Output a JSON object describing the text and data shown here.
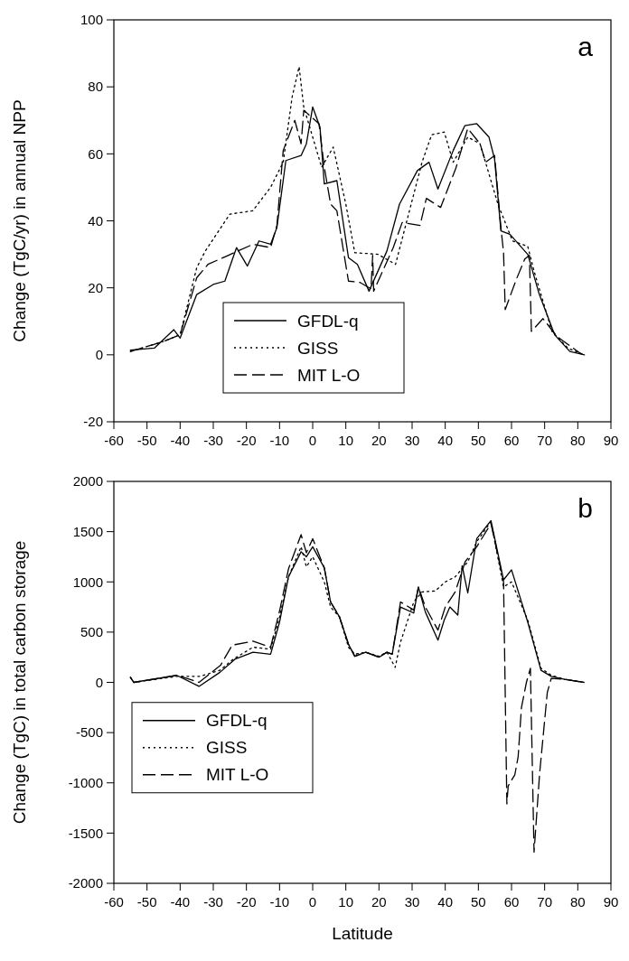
{
  "chart_data": [
    {
      "type": "line",
      "ylabel": "Change (TgC/yr) in annual NPP",
      "annotations": [
        "a"
      ],
      "xlim": [
        -60,
        90
      ],
      "xticks": [
        -60,
        -50,
        -40,
        -30,
        -20,
        -10,
        0,
        10,
        20,
        30,
        40,
        50,
        60,
        70,
        80,
        90
      ],
      "ylim": [
        -20,
        100
      ],
      "yticks": [
        -20,
        0,
        20,
        40,
        60,
        80,
        100
      ],
      "legend": "bottom",
      "grid": false,
      "series": [
        {
          "name": "GFDL-q",
          "color": "#000000",
          "line_style": "solid",
          "x": [
            -55,
            -47.8,
            -41.9,
            -40,
            -35,
            -30,
            -26.5,
            -23,
            -19.7,
            -16.2,
            -12.7,
            -10.8,
            -8.1,
            -3.5,
            -1.9,
            0,
            2.2,
            3.5,
            7.3,
            10.8,
            13.5,
            17,
            22.4,
            26.2,
            31.6,
            35.1,
            37.8,
            42.4,
            45.9,
            49.5,
            53.2,
            54.9,
            56.8,
            59.5,
            64.9,
            68.4,
            73,
            77.6,
            82
          ],
          "values": [
            1.4,
            2,
            7.5,
            5,
            18,
            21,
            22,
            32,
            26.5,
            34,
            33,
            38,
            58,
            59.5,
            63,
            74,
            68,
            51,
            52,
            29,
            27,
            19,
            31,
            45,
            55,
            57.5,
            49.5,
            61,
            68.4,
            69,
            65,
            58.4,
            37,
            36,
            30,
            18,
            6,
            1,
            0
          ]
        },
        {
          "name": "GISS",
          "color": "#000000",
          "line_style": "dotted",
          "x": [
            -55,
            -45,
            -40,
            -35,
            -32.4,
            -25,
            -18.1,
            -12.7,
            -8.9,
            -6.2,
            -4.1,
            -2.7,
            2.7,
            6.2,
            10,
            12.7,
            19.7,
            25,
            33,
            35.9,
            39.7,
            42.4,
            46.8,
            50.5,
            53.2,
            55.9,
            60.3,
            64.9,
            66.8,
            72.2,
            77,
            82
          ],
          "values": [
            1,
            4,
            6,
            26,
            31,
            42,
            43,
            50,
            57.5,
            77,
            86,
            74,
            56,
            62,
            45,
            30.5,
            30,
            27,
            57.5,
            65.7,
            66.5,
            57.5,
            65,
            63,
            54,
            45,
            34,
            32.4,
            25,
            7,
            2,
            0
          ]
        },
        {
          "name": "MIT L-O",
          "color": "#000000",
          "line_style": "dashed",
          "x": [
            -55,
            -45,
            -40,
            -35,
            -31.6,
            -18,
            -12.7,
            -10.8,
            -8.9,
            -5.4,
            -3.5,
            -2.7,
            1.9,
            3.5,
            5.4,
            7.3,
            10.8,
            14.3,
            17.6,
            18.1,
            18.4,
            24.3,
            27,
            32.4,
            34.3,
            38.6,
            43.2,
            46.8,
            50.5,
            52.2,
            54.9,
            56.8,
            57.6,
            58.1,
            61.4,
            64,
            65.4,
            66,
            69.5,
            73.8,
            81
          ],
          "values": [
            1,
            4,
            6,
            23,
            27,
            33,
            32,
            38.6,
            61,
            70,
            63,
            73,
            69,
            56,
            45,
            43,
            22,
            21.6,
            19.7,
            29.7,
            19,
            32,
            39.5,
            38.6,
            46.7,
            44,
            55.7,
            67.6,
            63,
            57.5,
            59.5,
            38,
            30.5,
            13.5,
            22.4,
            28.6,
            29.7,
            7,
            10.8,
            5.4,
            0.3
          ]
        }
      ]
    },
    {
      "type": "line",
      "xlabel": "Latitude",
      "ylabel": "Change (TgC) in total carbon storage",
      "annotations": [
        "b"
      ],
      "xlim": [
        -60,
        90
      ],
      "xticks": [
        -60,
        -50,
        -40,
        -30,
        -20,
        -10,
        0,
        10,
        20,
        30,
        40,
        50,
        60,
        70,
        80,
        90
      ],
      "ylim": [
        -2000,
        2000
      ],
      "yticks": [
        -2000,
        -1500,
        -1000,
        -500,
        0,
        500,
        1000,
        1500,
        2000
      ],
      "legend": "bottom left",
      "grid": false,
      "series": [
        {
          "name": "GFDL-q",
          "color": "#000000",
          "line_style": "solid",
          "x": [
            -55,
            -54,
            -41,
            -34.3,
            -28,
            -23.5,
            -18,
            -12.7,
            -10,
            -7.3,
            -3.5,
            -1.9,
            0,
            3.5,
            5.4,
            8.1,
            10.8,
            12.7,
            16,
            20,
            22.4,
            24,
            26.5,
            30.5,
            31.9,
            34,
            37.8,
            39.7,
            41.4,
            43.8,
            45.1,
            46.8,
            49.5,
            53.8,
            57.6,
            60,
            64.9,
            68.9,
            72,
            76,
            81.9
          ],
          "values": [
            50,
            0,
            70,
            -40,
            100,
            230,
            300,
            280,
            600,
            1050,
            1300,
            1250,
            1350,
            1140,
            800,
            650,
            380,
            260,
            300,
            250,
            300,
            280,
            750,
            690,
            950,
            700,
            420,
            620,
            750,
            670,
            1160,
            890,
            1430,
            1610,
            1020,
            1120,
            600,
            120,
            60,
            30,
            0
          ]
        },
        {
          "name": "GISS",
          "color": "#000000",
          "line_style": "dotted",
          "x": [
            -55,
            -54,
            -41,
            -34,
            -28,
            -24,
            -18,
            -12.7,
            -10,
            -7.3,
            -3.5,
            -1.9,
            0,
            3.5,
            5.4,
            8.1,
            10.8,
            12.7,
            16,
            20,
            22.4,
            24.9,
            26.5,
            28.5,
            30.5,
            33,
            37,
            40,
            43,
            46.8,
            49.5,
            53.8,
            57.6,
            60,
            64.9,
            68.9,
            72,
            76,
            81.9
          ],
          "values": [
            50,
            0,
            60,
            60,
            120,
            230,
            350,
            330,
            650,
            1050,
            1350,
            1150,
            1250,
            1000,
            750,
            650,
            350,
            280,
            300,
            260,
            300,
            150,
            400,
            600,
            800,
            900,
            910,
            1000,
            1050,
            1200,
            1400,
            1600,
            950,
            1000,
            620,
            140,
            70,
            30,
            0
          ]
        },
        {
          "name": "MIT L-O",
          "color": "#000000",
          "line_style": "dashed",
          "x": [
            -55,
            -54,
            -41,
            -34.3,
            -27.8,
            -24.3,
            -18,
            -12.7,
            -10,
            -7.3,
            -3.5,
            -1.9,
            0,
            3.5,
            5.4,
            8.1,
            10.8,
            12.7,
            16,
            20,
            22.4,
            24,
            26.5,
            30.5,
            31.9,
            34,
            37.8,
            40,
            43,
            46,
            49.5,
            53.8,
            57.6,
            58.6,
            59,
            61,
            62,
            63,
            64.5,
            65.7,
            66.8,
            68.5,
            70.8,
            72,
            76,
            81.9
          ],
          "values": [
            50,
            0,
            70,
            0,
            170,
            370,
            410,
            350,
            710,
            1130,
            1470,
            1290,
            1430,
            1140,
            800,
            650,
            380,
            260,
            300,
            250,
            300,
            280,
            800,
            720,
            950,
            750,
            520,
            750,
            900,
            1200,
            1350,
            1580,
            1000,
            -1210,
            -1030,
            -920,
            -740,
            -250,
            0,
            140,
            -1690,
            -900,
            -100,
            40,
            30,
            0
          ]
        }
      ]
    }
  ]
}
